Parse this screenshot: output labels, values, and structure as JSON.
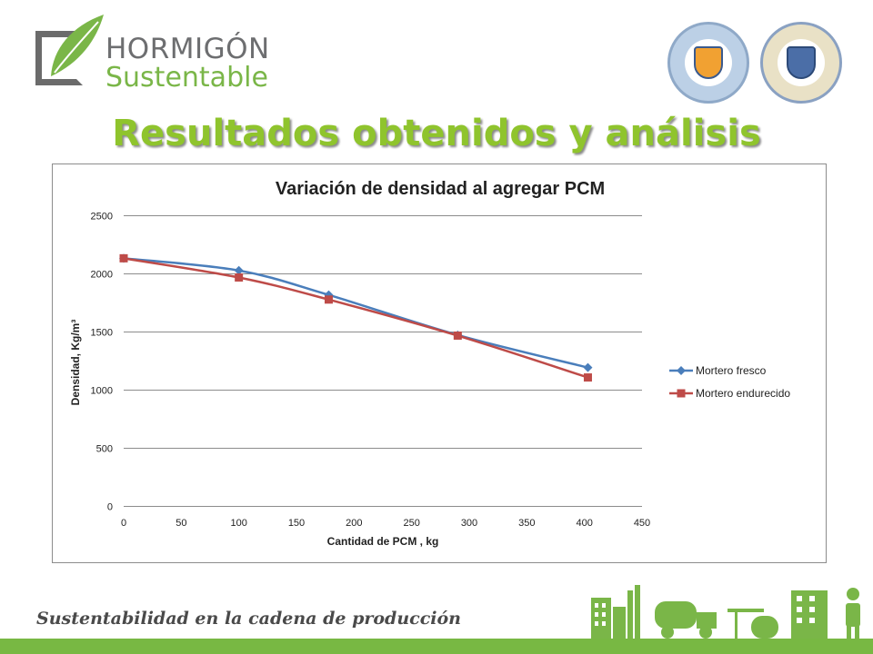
{
  "header": {
    "logo_line1": "HORMIGÓN",
    "logo_line2": "Sustentable",
    "title": "Resultados obtenidos y análisis"
  },
  "footer": {
    "tagline": "Sustentabilidad en la cadena de producción"
  },
  "colors": {
    "title_green": "#8fc42d",
    "footer_green": "#78b843",
    "series_fresco": "#4a7ebb",
    "series_endurecido": "#be4b48"
  },
  "chart_data": {
    "type": "line",
    "title": "Variación de densidad al agregar PCM",
    "xlabel": "Cantidad de PCM , kg",
    "ylabel": "Densidad, Kg/m³",
    "xlim": [
      0,
      450
    ],
    "ylim": [
      0,
      2500
    ],
    "xticks": [
      0,
      50,
      100,
      150,
      200,
      250,
      300,
      350,
      400,
      450
    ],
    "yticks": [
      0,
      500,
      1000,
      1500,
      2000,
      2500
    ],
    "grid": "horizontal",
    "legend_position": "right",
    "series": [
      {
        "name": "Mortero fresco",
        "color": "#4a7ebb",
        "marker": "diamond",
        "x": [
          0,
          100,
          178,
          290,
          403
        ],
        "y": [
          2130,
          2025,
          1815,
          1470,
          1190
        ]
      },
      {
        "name": "Mortero endurecido",
        "color": "#be4b48",
        "marker": "square",
        "x": [
          0,
          100,
          178,
          290,
          403
        ],
        "y": [
          2130,
          1965,
          1775,
          1465,
          1105
        ]
      }
    ]
  }
}
